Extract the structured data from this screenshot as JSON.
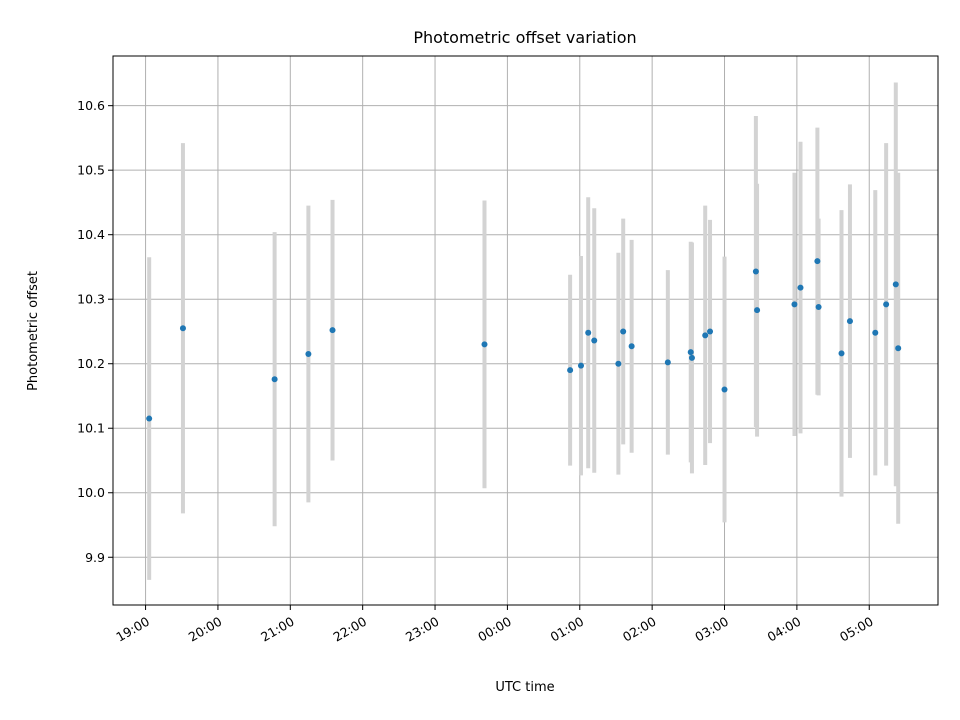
{
  "chart_data": {
    "type": "scatter",
    "title": "Photometric offset variation",
    "xlabel": "UTC time",
    "ylabel": "Photometric offset",
    "x_unit": "UTC time (HH:MM)",
    "xlim": [
      "18:33",
      "05:57"
    ],
    "ylim": [
      9.826,
      10.677
    ],
    "x_ticks": [
      "19:00",
      "20:00",
      "21:00",
      "22:00",
      "23:00",
      "00:00",
      "01:00",
      "02:00",
      "03:00",
      "04:00",
      "05:00"
    ],
    "y_ticks": [
      "9.9",
      "10.0",
      "10.1",
      "10.2",
      "10.3",
      "10.4",
      "10.5",
      "10.6"
    ],
    "grid": true,
    "colors": {
      "points": "#1f77b4",
      "errorbars": "#d3d3d3"
    },
    "points": [
      {
        "x": "19:03",
        "y": 10.115,
        "err": 0.25
      },
      {
        "x": "19:31",
        "y": 10.255,
        "err": 0.287
      },
      {
        "x": "20:47",
        "y": 10.176,
        "err": 0.228
      },
      {
        "x": "21:15",
        "y": 10.215,
        "err": 0.23
      },
      {
        "x": "21:35",
        "y": 10.252,
        "err": 0.202
      },
      {
        "x": "23:41",
        "y": 10.23,
        "err": 0.223
      },
      {
        "x": "00:52",
        "y": 10.19,
        "err": 0.148
      },
      {
        "x": "01:01",
        "y": 10.197,
        "err": 0.17
      },
      {
        "x": "01:07",
        "y": 10.248,
        "err": 0.21
      },
      {
        "x": "01:12",
        "y": 10.236,
        "err": 0.205
      },
      {
        "x": "01:32",
        "y": 10.2,
        "err": 0.172
      },
      {
        "x": "01:36",
        "y": 10.25,
        "err": 0.175
      },
      {
        "x": "01:43",
        "y": 10.227,
        "err": 0.165
      },
      {
        "x": "02:13",
        "y": 10.202,
        "err": 0.143
      },
      {
        "x": "02:32",
        "y": 10.218,
        "err": 0.171
      },
      {
        "x": "02:33",
        "y": 10.209,
        "err": 0.179
      },
      {
        "x": "02:44",
        "y": 10.244,
        "err": 0.201
      },
      {
        "x": "02:48",
        "y": 10.25,
        "err": 0.173
      },
      {
        "x": "03:00",
        "y": 10.16,
        "err": 0.206
      },
      {
        "x": "03:26",
        "y": 10.343,
        "err": 0.241
      },
      {
        "x": "03:27",
        "y": 10.283,
        "err": 0.196
      },
      {
        "x": "03:58",
        "y": 10.292,
        "err": 0.204
      },
      {
        "x": "04:03",
        "y": 10.318,
        "err": 0.226
      },
      {
        "x": "04:17",
        "y": 10.359,
        "err": 0.207
      },
      {
        "x": "04:18",
        "y": 10.288,
        "err": 0.137
      },
      {
        "x": "04:37",
        "y": 10.216,
        "err": 0.222
      },
      {
        "x": "04:44",
        "y": 10.266,
        "err": 0.212
      },
      {
        "x": "05:05",
        "y": 10.248,
        "err": 0.221
      },
      {
        "x": "05:14",
        "y": 10.292,
        "err": 0.25
      },
      {
        "x": "05:22",
        "y": 10.323,
        "err": 0.313
      },
      {
        "x": "05:24",
        "y": 10.224,
        "err": 0.272
      }
    ]
  }
}
